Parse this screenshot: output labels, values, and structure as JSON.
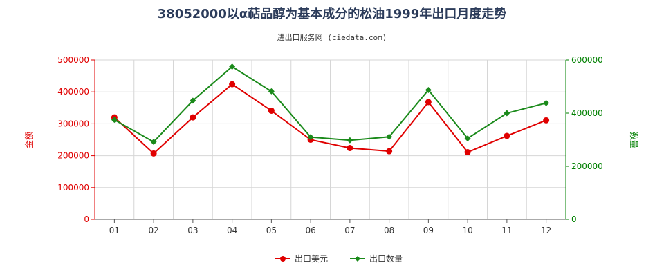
{
  "chart_data": {
    "type": "line",
    "title": "38052000以α萜品醇为基本成分的松油1999年出口月度走势",
    "subtitle": "进出口服务网 (ciedata.com)",
    "categories": [
      "01",
      "02",
      "03",
      "04",
      "05",
      "06",
      "07",
      "08",
      "09",
      "10",
      "11",
      "12"
    ],
    "y_left": {
      "label": "金额",
      "ylim": [
        0,
        500000
      ],
      "ticks": [
        0,
        100000,
        200000,
        300000,
        400000,
        500000
      ],
      "color": "#e00000"
    },
    "y_right": {
      "label": "数量",
      "ylim": [
        0,
        600000
      ],
      "ticks": [
        0,
        200000,
        400000,
        600000
      ],
      "color": "#008000"
    },
    "series": [
      {
        "name": "出口美元",
        "axis": "left",
        "color": "#e00000",
        "values": [
          320000,
          207000,
          320000,
          424000,
          341000,
          250000,
          224000,
          214000,
          368000,
          211000,
          262000,
          311000
        ]
      },
      {
        "name": "出口数量",
        "axis": "right",
        "color": "#1a8a1a",
        "values": [
          375000,
          292000,
          447000,
          575000,
          482000,
          310000,
          298000,
          311000,
          487000,
          305000,
          400000,
          438000
        ]
      }
    ],
    "grid": true,
    "legend": "bottom-center"
  }
}
